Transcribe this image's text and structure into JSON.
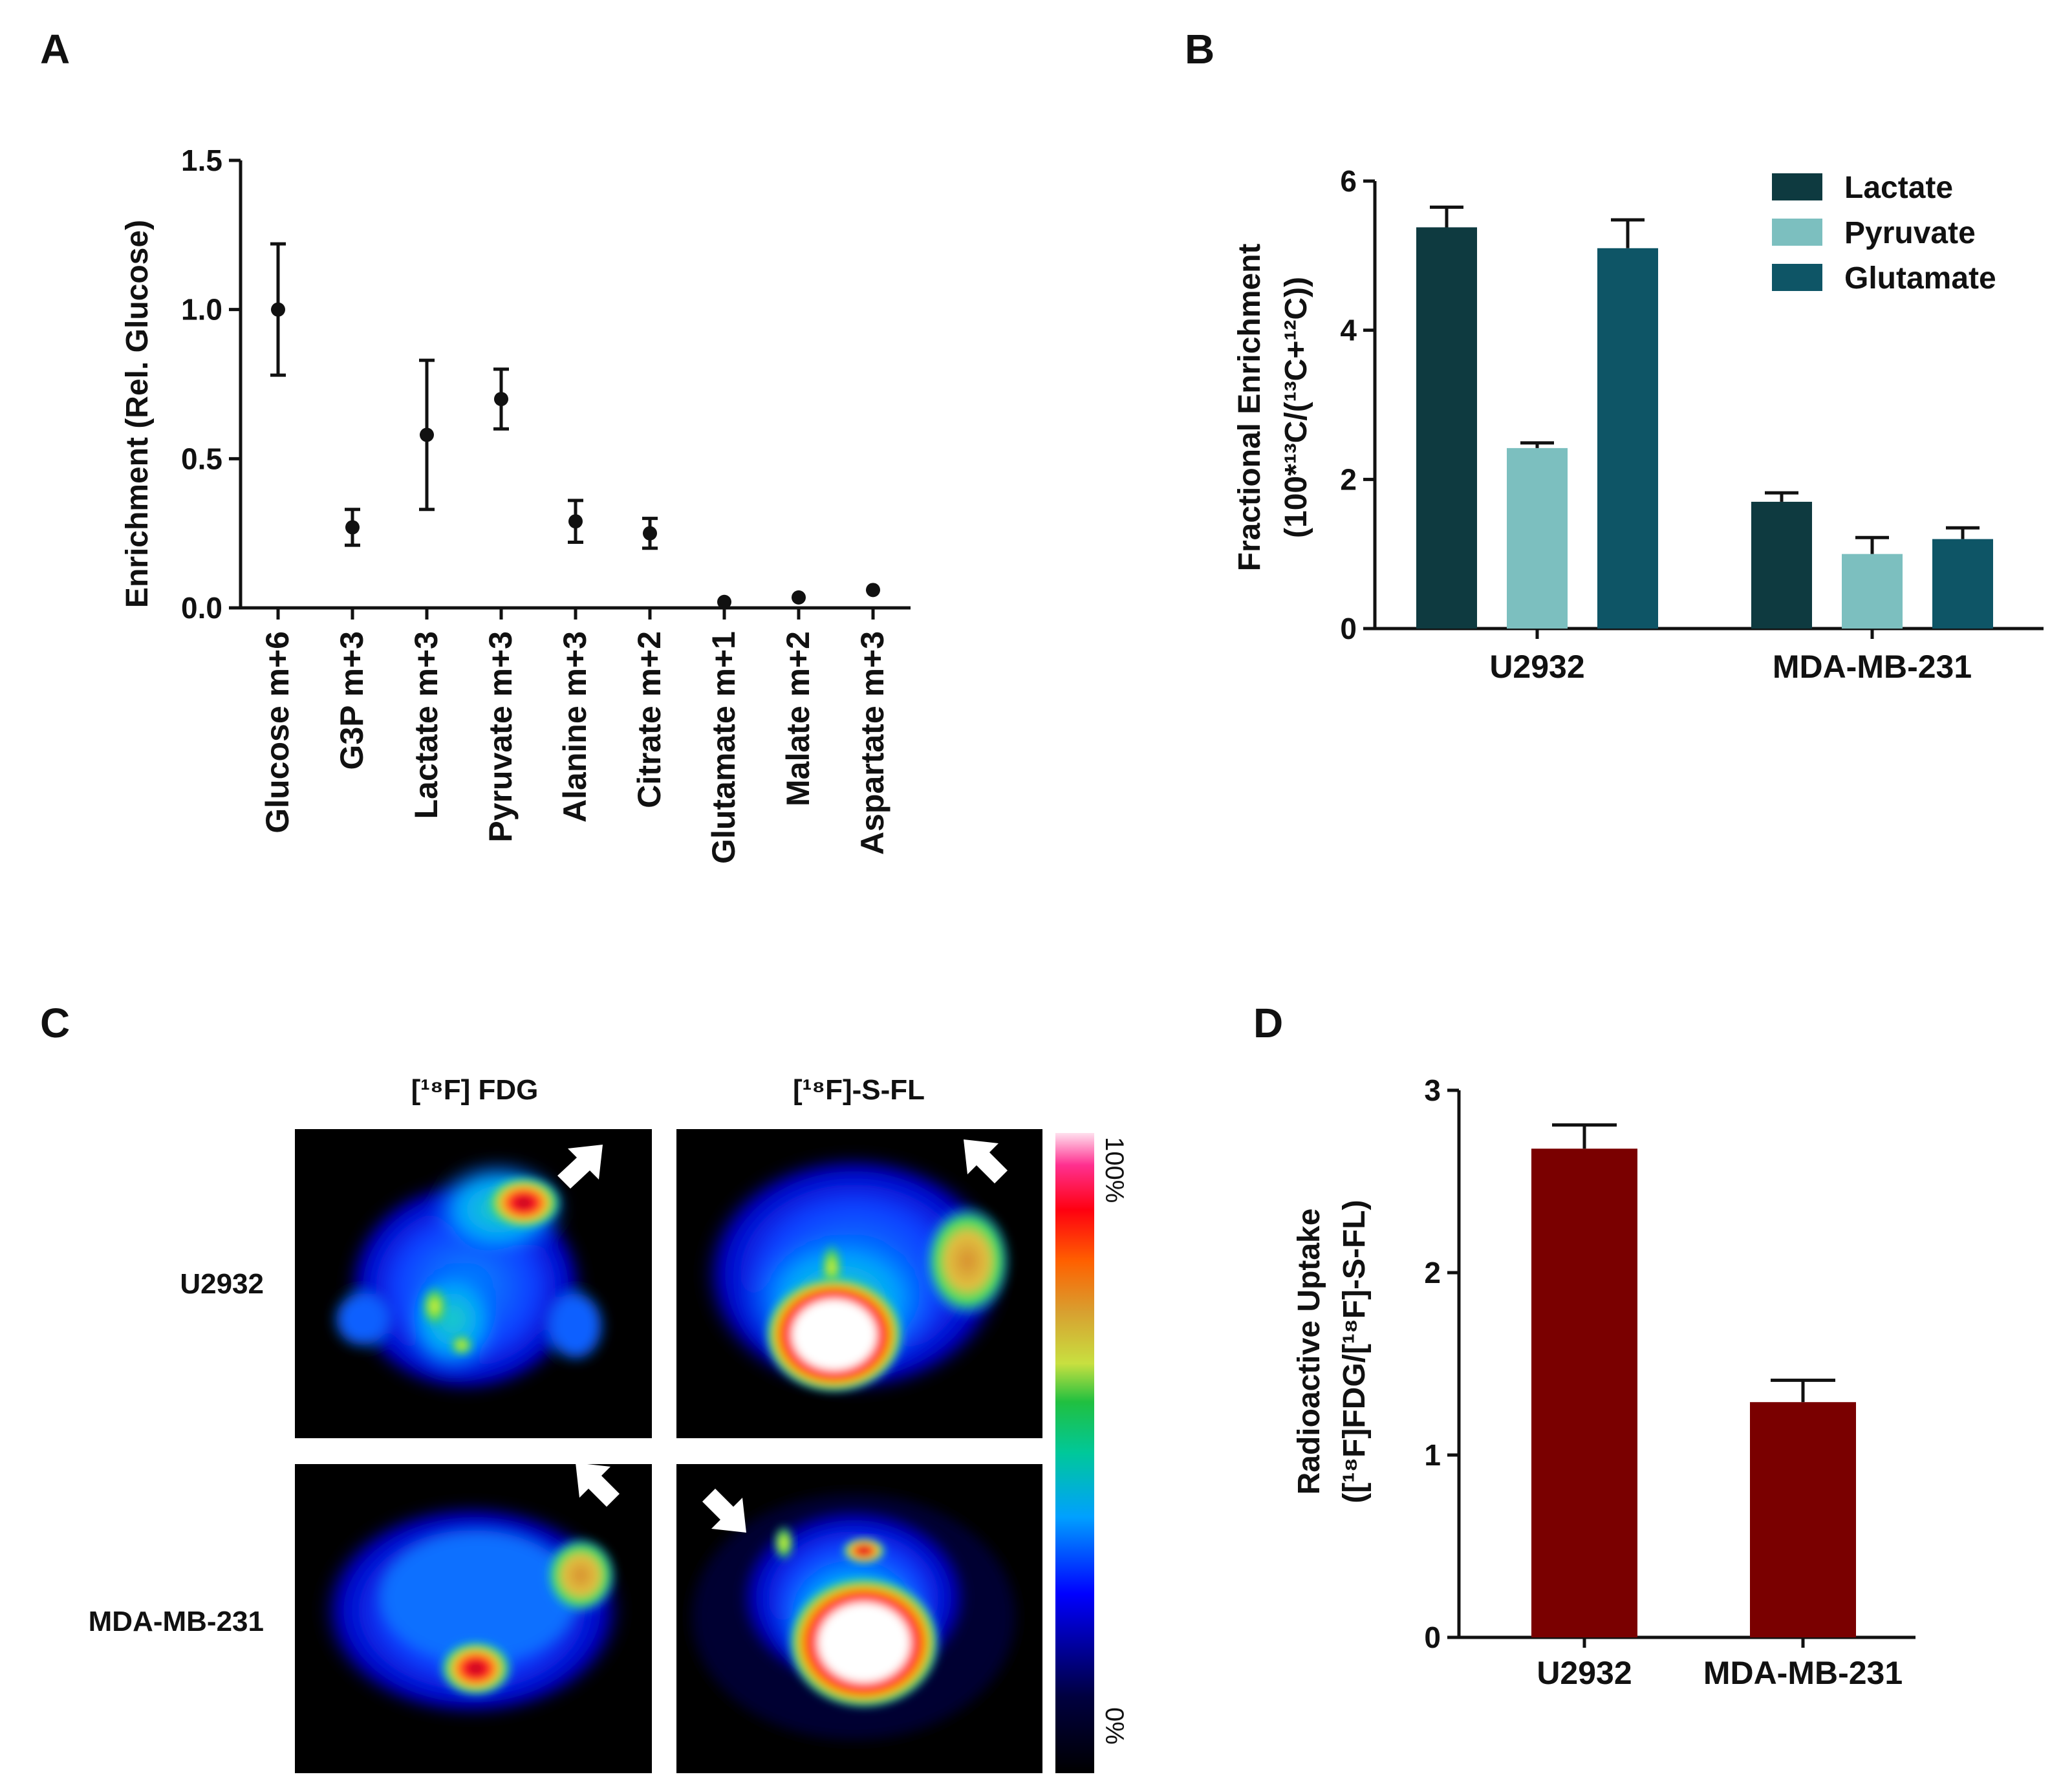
{
  "panels": {
    "a": "A",
    "b": "B",
    "c": "C",
    "d": "D"
  },
  "chart_data": [
    {
      "panel": "A",
      "type": "scatter",
      "title": "",
      "ylabel": "Enrichment (Rel. Glucose)",
      "xlabel": "",
      "ylim": [
        0,
        1.5
      ],
      "yticks": [
        "0.0",
        "0.5",
        "1.0",
        "1.5"
      ],
      "ytick_values": [
        0,
        0.5,
        1.0,
        1.5
      ],
      "categories": [
        "Glucose m+6",
        "G3P m+3",
        "Lactate m+3",
        "Pyruvate m+3",
        "Alanine m+3",
        "Citrate m+2",
        "Glutamate m+1",
        "Malate m+2",
        "Aspartate m+3"
      ],
      "values": [
        1.0,
        0.27,
        0.58,
        0.7,
        0.29,
        0.25,
        0.02,
        0.035,
        0.06
      ],
      "errors": [
        0.22,
        0.06,
        0.25,
        0.1,
        0.07,
        0.05,
        0,
        0,
        0
      ]
    },
    {
      "panel": "B",
      "type": "bar",
      "title": "",
      "ylabel_line1": "Fractional Enrichment",
      "ylabel_line2": "(100*¹³C/(¹³C+¹²C))",
      "ylim": [
        0,
        6
      ],
      "yticks": [
        "0",
        "2",
        "4",
        "6"
      ],
      "ytick_values": [
        0,
        2,
        4,
        6
      ],
      "categories": [
        "U2932",
        "MDA-MB-231"
      ],
      "series": [
        {
          "name": "Lactate",
          "color": "#0e3a40",
          "values": [
            5.38,
            1.7
          ],
          "errors": [
            0.27,
            0.12
          ]
        },
        {
          "name": "Pyruvate",
          "color": "#7cbfbf",
          "values": [
            2.42,
            1.0
          ],
          "errors": [
            0.07,
            0.22
          ]
        },
        {
          "name": "Glutamate",
          "color": "#0e5566",
          "values": [
            5.1,
            1.2
          ],
          "errors": [
            0.38,
            0.15
          ]
        }
      ],
      "legend_position": "top-right"
    },
    {
      "panel": "D",
      "type": "bar",
      "title": "",
      "ylabel_line1": "Radioactive Uptake",
      "ylabel_line2": "([¹⁸F]FDG/[¹⁸F]-S-FL)",
      "ylim": [
        0,
        3
      ],
      "yticks": [
        "0",
        "1",
        "2",
        "3"
      ],
      "ytick_values": [
        0,
        1,
        2,
        3
      ],
      "categories": [
        "U2932",
        "MDA-MB-231"
      ],
      "values": [
        2.68,
        1.29
      ],
      "errors": [
        0.13,
        0.12
      ],
      "color": "#7a0000"
    }
  ],
  "panel_c": {
    "column_headers": [
      "[¹⁸F] FDG",
      "[¹⁸F]-S-FL"
    ],
    "row_labels": [
      "U2932",
      "MDA-MB-231"
    ],
    "scale_max_label": "100%",
    "scale_min_label": "0%"
  }
}
